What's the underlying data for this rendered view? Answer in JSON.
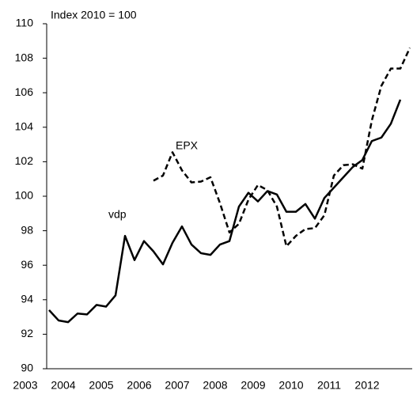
{
  "chart_data": {
    "type": "line",
    "y_label": "Index 2010 = 100",
    "categories": [
      "2003",
      null,
      null,
      null,
      "2004",
      null,
      null,
      null,
      "2005",
      null,
      null,
      null,
      "2006",
      null,
      null,
      null,
      "2007",
      null,
      null,
      null,
      "2008",
      null,
      null,
      null,
      "2009",
      null,
      null,
      null,
      "2010",
      null,
      null,
      null,
      "2011",
      null,
      null,
      null,
      "2012",
      null,
      null
    ],
    "series": [
      {
        "name": "vdp",
        "color": "#000000",
        "style": "solid",
        "values": [
          93.4,
          92.8,
          92.7,
          93.2,
          93.15,
          93.7,
          93.6,
          94.25,
          97.7,
          96.3,
          97.4,
          96.8,
          96.05,
          97.3,
          98.25,
          97.2,
          96.7,
          96.6,
          97.2,
          97.4,
          99.4,
          100.2,
          99.7,
          100.3,
          100.1,
          99.1,
          99.1,
          99.55,
          98.7,
          99.9,
          100.5,
          101.1,
          101.7,
          102.1,
          103.2,
          103.4,
          104.2,
          105.6,
          null
        ]
      },
      {
        "name": "EPX",
        "color": "#000000",
        "style": "dashed",
        "values": [
          null,
          null,
          null,
          null,
          null,
          null,
          null,
          null,
          null,
          null,
          null,
          100.9,
          101.2,
          102.55,
          101.5,
          100.8,
          100.85,
          101.1,
          99.6,
          97.9,
          98.4,
          99.8,
          100.65,
          100.35,
          99.4,
          97.1,
          97.7,
          98.1,
          98.15,
          98.9,
          101.2,
          101.8,
          101.85,
          101.6,
          104.4,
          106.4,
          107.4,
          107.4,
          108.6
        ]
      }
    ],
    "ylim": [
      90,
      110
    ],
    "yticks": [
      90,
      92,
      94,
      96,
      98,
      100,
      102,
      104,
      106,
      108,
      110
    ]
  }
}
